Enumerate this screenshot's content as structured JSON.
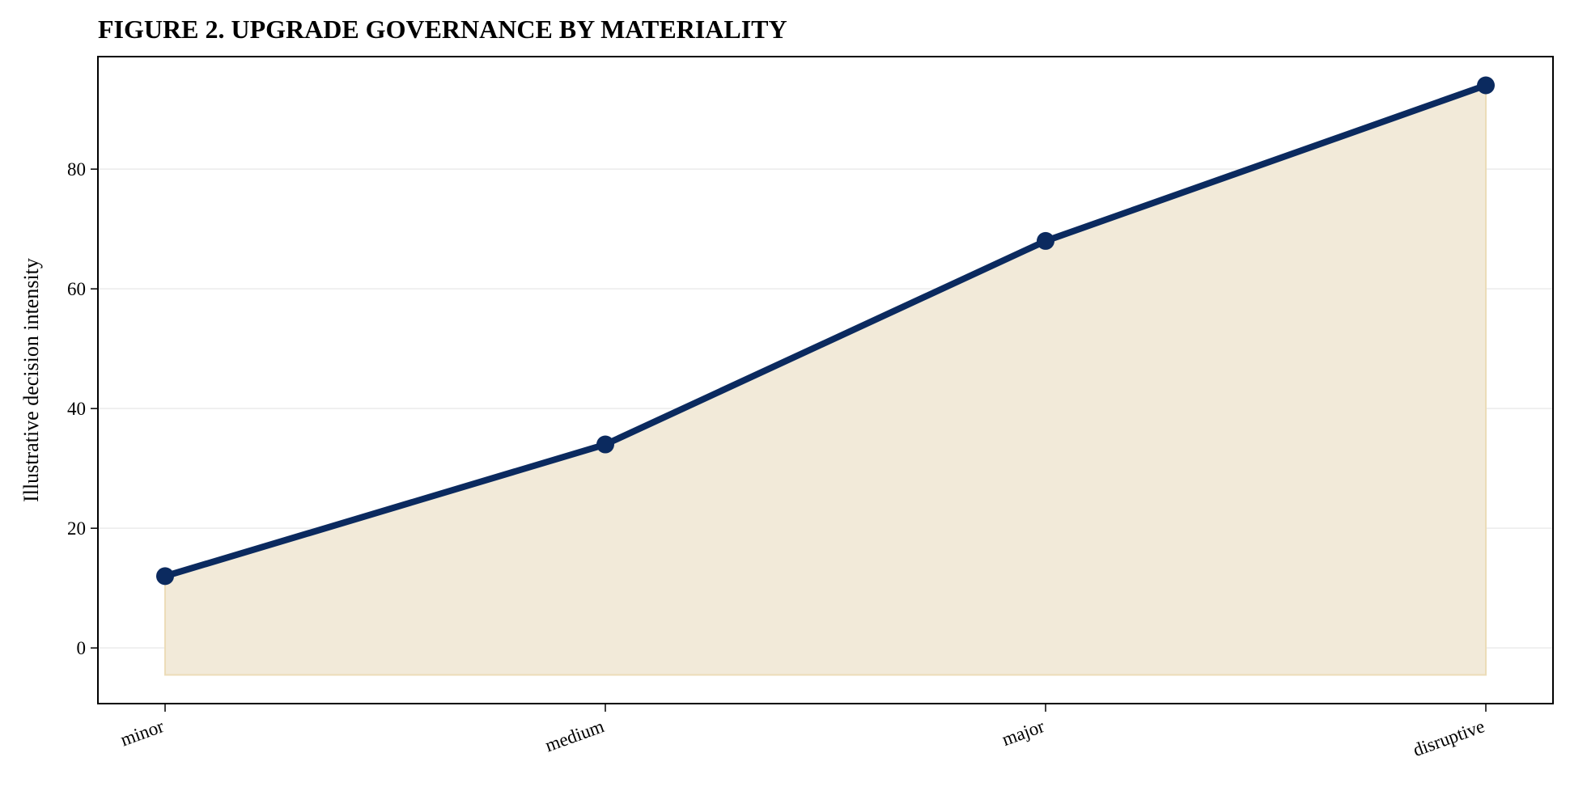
{
  "chart_data": {
    "type": "area",
    "title": "FIGURE 2. UPGRADE GOVERNANCE BY MATERIALITY",
    "xlabel": "",
    "ylabel": "Illustrative decision intensity",
    "categories": [
      "minor",
      "medium",
      "major",
      "disruptive"
    ],
    "series": [
      {
        "values": [
          12,
          34,
          68,
          94
        ]
      }
    ],
    "fill_baseline": -4.5,
    "ylim": [
      -9.3,
      98.8
    ],
    "yticks": [
      0,
      20,
      40,
      60,
      80
    ],
    "grid": "horizontal",
    "colors": {
      "line": "#0b2a5f",
      "fill": "#f2ead9",
      "fill_edge": "#ecdcb8",
      "grid": "#ebebeb"
    }
  }
}
